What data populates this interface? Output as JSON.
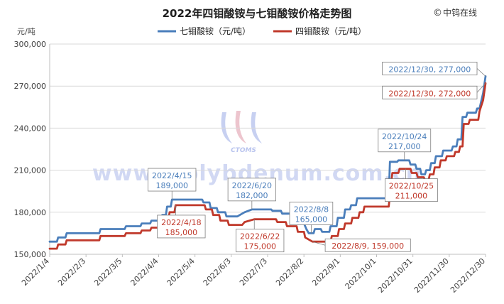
{
  "source_label": "中钨在线",
  "watermark_text": "www.molybdenum.com.cn",
  "watermark_logo_text": "CTOMS",
  "colors": {
    "seven": "#4a7ebb",
    "four": "#c0392b",
    "grid": "#d9d9d9",
    "axis_text": "#404040",
    "watermark": "#b9c4ee"
  },
  "chart_data": {
    "type": "line",
    "title": "2022年四钼酸铵与七钼酸铵价格走势图",
    "ylabel": "元/吨",
    "xlabel": "",
    "ylim": [
      150000,
      300000
    ],
    "yticks": [
      150000,
      180000,
      210000,
      240000,
      270000,
      300000
    ],
    "ytick_labels": [
      "150,000",
      "180,000",
      "210,000",
      "240,000",
      "270,000",
      "300,000"
    ],
    "xlim": [
      "2022-01-04",
      "2022-12-30"
    ],
    "xticks": [
      "2022-01-04",
      "2022-02-03",
      "2022-03-05",
      "2022-04-04",
      "2022-05-04",
      "2022-06-03",
      "2022-07-03",
      "2022-08-02",
      "2022-09-01",
      "2022-10-01",
      "2022-10-31",
      "2022-11-30",
      "2022-12-30"
    ],
    "xtick_labels": [
      "2022/1/4",
      "2022/2/3",
      "2022/3/5",
      "2022/4/4",
      "2022/5/4",
      "2022/6/3",
      "2022/7/3",
      "2022/8/2",
      "2022/9/1",
      "2022/10/1",
      "2022/10/31",
      "2022/11/30",
      "2022/12/30"
    ],
    "grid": true,
    "legend_position": "top",
    "series": [
      {
        "name": "七钼酸铵（元/吨）",
        "color": "#4a7ebb",
        "points": [
          [
            "2022-01-04",
            159000
          ],
          [
            "2022-01-10",
            159000
          ],
          [
            "2022-01-11",
            162000
          ],
          [
            "2022-01-17",
            162000
          ],
          [
            "2022-01-18",
            165000
          ],
          [
            "2022-02-14",
            165000
          ],
          [
            "2022-02-15",
            168000
          ],
          [
            "2022-03-07",
            168000
          ],
          [
            "2022-03-08",
            170000
          ],
          [
            "2022-03-20",
            170000
          ],
          [
            "2022-03-21",
            172000
          ],
          [
            "2022-03-28",
            172000
          ],
          [
            "2022-03-29",
            174000
          ],
          [
            "2022-04-06",
            174000
          ],
          [
            "2022-04-07",
            178000
          ],
          [
            "2022-04-10",
            178000
          ],
          [
            "2022-04-11",
            184000
          ],
          [
            "2022-04-14",
            184000
          ],
          [
            "2022-04-15",
            189000
          ],
          [
            "2022-05-10",
            189000
          ],
          [
            "2022-05-11",
            187000
          ],
          [
            "2022-05-16",
            187000
          ],
          [
            "2022-05-17",
            183000
          ],
          [
            "2022-05-22",
            183000
          ],
          [
            "2022-05-23",
            180000
          ],
          [
            "2022-05-29",
            180000
          ],
          [
            "2022-05-30",
            177000
          ],
          [
            "2022-06-08",
            177000
          ],
          [
            "2022-06-10",
            178000
          ],
          [
            "2022-06-14",
            180000
          ],
          [
            "2022-06-20",
            182000
          ],
          [
            "2022-07-06",
            182000
          ],
          [
            "2022-07-07",
            181000
          ],
          [
            "2022-07-14",
            181000
          ],
          [
            "2022-07-15",
            179000
          ],
          [
            "2022-07-24",
            179000
          ],
          [
            "2022-07-25",
            176000
          ],
          [
            "2022-08-01",
            176000
          ],
          [
            "2022-08-02",
            172000
          ],
          [
            "2022-08-04",
            168000
          ],
          [
            "2022-08-06",
            165000
          ],
          [
            "2022-08-10",
            165000
          ],
          [
            "2022-08-11",
            168000
          ],
          [
            "2022-08-16",
            168000
          ],
          [
            "2022-08-17",
            166000
          ],
          [
            "2022-08-23",
            166000
          ],
          [
            "2022-08-24",
            170000
          ],
          [
            "2022-08-29",
            170000
          ],
          [
            "2022-08-30",
            176000
          ],
          [
            "2022-09-04",
            176000
          ],
          [
            "2022-09-05",
            182000
          ],
          [
            "2022-09-09",
            182000
          ],
          [
            "2022-09-10",
            185000
          ],
          [
            "2022-09-14",
            185000
          ],
          [
            "2022-09-15",
            190000
          ],
          [
            "2022-10-08",
            190000
          ],
          [
            "2022-10-11",
            190000
          ],
          [
            "2022-10-12",
            216000
          ],
          [
            "2022-10-18",
            216000
          ],
          [
            "2022-10-19",
            217000
          ],
          [
            "2022-10-28",
            217000
          ],
          [
            "2022-10-29",
            214000
          ],
          [
            "2022-11-02",
            214000
          ],
          [
            "2022-11-03",
            211000
          ],
          [
            "2022-11-06",
            211000
          ],
          [
            "2022-11-07",
            207000
          ],
          [
            "2022-11-10",
            207000
          ],
          [
            "2022-11-11",
            210000
          ],
          [
            "2022-11-14",
            210000
          ],
          [
            "2022-11-15",
            215000
          ],
          [
            "2022-11-18",
            215000
          ],
          [
            "2022-11-19",
            220000
          ],
          [
            "2022-11-24",
            220000
          ],
          [
            "2022-11-25",
            224000
          ],
          [
            "2022-12-02",
            224000
          ],
          [
            "2022-12-03",
            227000
          ],
          [
            "2022-12-06",
            227000
          ],
          [
            "2022-12-07",
            232000
          ],
          [
            "2022-12-10",
            232000
          ],
          [
            "2022-12-11",
            248000
          ],
          [
            "2022-12-14",
            248000
          ],
          [
            "2022-12-15",
            251000
          ],
          [
            "2022-12-22",
            251000
          ],
          [
            "2022-12-23",
            254000
          ],
          [
            "2022-12-25",
            254000
          ],
          [
            "2022-12-28",
            265000
          ],
          [
            "2022-12-30",
            277000
          ]
        ]
      },
      {
        "name": "四钼酸铵（元/吨）",
        "color": "#c0392b",
        "points": [
          [
            "2022-01-04",
            154000
          ],
          [
            "2022-01-10",
            154000
          ],
          [
            "2022-01-11",
            157000
          ],
          [
            "2022-01-17",
            157000
          ],
          [
            "2022-01-18",
            160000
          ],
          [
            "2022-02-14",
            160000
          ],
          [
            "2022-02-15",
            163000
          ],
          [
            "2022-03-07",
            163000
          ],
          [
            "2022-03-08",
            165000
          ],
          [
            "2022-03-20",
            165000
          ],
          [
            "2022-03-21",
            167000
          ],
          [
            "2022-03-28",
            167000
          ],
          [
            "2022-03-29",
            169000
          ],
          [
            "2022-04-06",
            169000
          ],
          [
            "2022-04-07",
            174000
          ],
          [
            "2022-04-12",
            174000
          ],
          [
            "2022-04-13",
            180000
          ],
          [
            "2022-04-17",
            180000
          ],
          [
            "2022-04-18",
            185000
          ],
          [
            "2022-05-12",
            185000
          ],
          [
            "2022-05-13",
            182000
          ],
          [
            "2022-05-18",
            182000
          ],
          [
            "2022-05-19",
            178000
          ],
          [
            "2022-05-24",
            178000
          ],
          [
            "2022-05-25",
            174000
          ],
          [
            "2022-05-31",
            174000
          ],
          [
            "2022-06-01",
            171000
          ],
          [
            "2022-06-12",
            171000
          ],
          [
            "2022-06-14",
            173000
          ],
          [
            "2022-06-22",
            175000
          ],
          [
            "2022-07-10",
            175000
          ],
          [
            "2022-07-11",
            173000
          ],
          [
            "2022-07-18",
            173000
          ],
          [
            "2022-07-19",
            170000
          ],
          [
            "2022-07-27",
            170000
          ],
          [
            "2022-07-28",
            166000
          ],
          [
            "2022-08-02",
            166000
          ],
          [
            "2022-08-03",
            162000
          ],
          [
            "2022-08-09",
            159000
          ],
          [
            "2022-08-24",
            159000
          ],
          [
            "2022-08-25",
            163000
          ],
          [
            "2022-08-30",
            163000
          ],
          [
            "2022-08-31",
            168000
          ],
          [
            "2022-09-04",
            168000
          ],
          [
            "2022-09-05",
            172000
          ],
          [
            "2022-09-10",
            172000
          ],
          [
            "2022-09-11",
            176000
          ],
          [
            "2022-09-16",
            176000
          ],
          [
            "2022-09-17",
            180000
          ],
          [
            "2022-09-20",
            180000
          ],
          [
            "2022-09-21",
            184000
          ],
          [
            "2022-10-11",
            184000
          ],
          [
            "2022-10-14",
            208000
          ],
          [
            "2022-10-19",
            208000
          ],
          [
            "2022-10-20",
            211000
          ],
          [
            "2022-10-29",
            211000
          ],
          [
            "2022-10-30",
            208000
          ],
          [
            "2022-11-03",
            208000
          ],
          [
            "2022-11-04",
            205000
          ],
          [
            "2022-11-09",
            205000
          ],
          [
            "2022-11-10",
            203000
          ],
          [
            "2022-11-13",
            203000
          ],
          [
            "2022-11-14",
            207000
          ],
          [
            "2022-11-17",
            207000
          ],
          [
            "2022-11-18",
            212000
          ],
          [
            "2022-11-22",
            212000
          ],
          [
            "2022-11-23",
            217000
          ],
          [
            "2022-11-27",
            217000
          ],
          [
            "2022-11-28",
            220000
          ],
          [
            "2022-12-04",
            220000
          ],
          [
            "2022-12-05",
            223000
          ],
          [
            "2022-12-08",
            223000
          ],
          [
            "2022-12-09",
            227000
          ],
          [
            "2022-12-11",
            227000
          ],
          [
            "2022-12-12",
            243000
          ],
          [
            "2022-12-16",
            243000
          ],
          [
            "2022-12-17",
            246000
          ],
          [
            "2022-12-24",
            246000
          ],
          [
            "2022-12-25",
            252000
          ],
          [
            "2022-12-28",
            260000
          ],
          [
            "2022-12-30",
            272000
          ]
        ]
      }
    ],
    "annotations": [
      {
        "series": 0,
        "date": "2022-04-15",
        "value": 189000,
        "line1": "2022/4/15",
        "line2": "189,000",
        "side": "above"
      },
      {
        "series": 1,
        "date": "2022-04-18",
        "value": 185000,
        "line1": "2022/4/18",
        "line2": "185,000",
        "side": "below"
      },
      {
        "series": 0,
        "date": "2022-06-20",
        "value": 182000,
        "line1": "2022/6/20",
        "line2": "182,000",
        "side": "above"
      },
      {
        "series": 1,
        "date": "2022-06-22",
        "value": 175000,
        "line1": "2022/6/22",
        "line2": "175,000",
        "side": "below"
      },
      {
        "series": 0,
        "date": "2022-08-08",
        "value": 165000,
        "line1": "2022/8/8",
        "line2": "165,000",
        "side": "above"
      },
      {
        "series": 1,
        "date": "2022-08-09",
        "value": 159000,
        "line1": "2022/8/9, 159,000",
        "line2": "",
        "side": "right"
      },
      {
        "series": 0,
        "date": "2022-10-24",
        "value": 217000,
        "line1": "2022/10/24",
        "line2": "217,000",
        "side": "above"
      },
      {
        "series": 1,
        "date": "2022-10-25",
        "value": 211000,
        "line1": "2022/10/25",
        "line2": "211,000",
        "side": "below"
      },
      {
        "series": 0,
        "date": "2022-12-30",
        "value": 277000,
        "line1": "2022/12/30, 277,000",
        "line2": "",
        "side": "left-above"
      },
      {
        "series": 1,
        "date": "2022-12-30",
        "value": 272000,
        "line1": "2022/12/30, 272,000",
        "line2": "",
        "side": "left-below"
      }
    ]
  }
}
